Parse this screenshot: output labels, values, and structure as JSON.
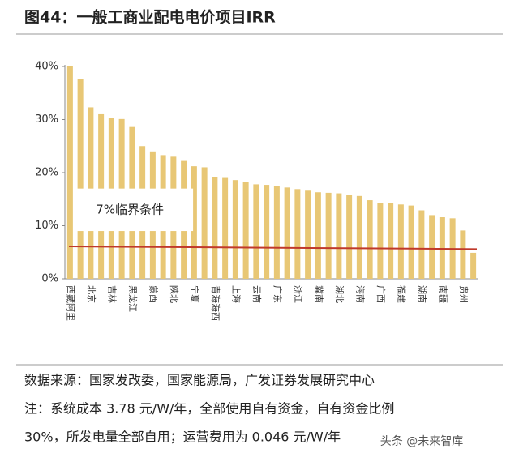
{
  "chart_data": {
    "type": "bar",
    "title": "图44：一般工商业配电电价项目IRR",
    "categories": [
      "西藏阿里",
      null,
      "北京",
      null,
      "吉林",
      null,
      "黑龙江",
      null,
      "蒙西",
      null,
      "陕北",
      null,
      "宁夏",
      null,
      "青海海西",
      null,
      "上海",
      null,
      "云南",
      null,
      "广东",
      null,
      "浙江",
      null,
      "冀南",
      null,
      "湖北",
      null,
      "海南",
      null,
      "广西",
      null,
      "福建",
      null,
      "湖南",
      null,
      "南疆",
      null,
      "贵州",
      null
    ],
    "values": [
      40,
      37.7,
      32.3,
      31,
      30.3,
      30.1,
      28.6,
      25,
      24,
      23.3,
      23,
      22.2,
      21.2,
      21,
      19.1,
      19,
      18.6,
      18.2,
      17.8,
      17.7,
      17.5,
      17.2,
      16.9,
      16.6,
      16.3,
      16.2,
      16.1,
      15.8,
      15.6,
      14.8,
      14.3,
      14.2,
      14,
      13.8,
      12.9,
      12,
      11.6,
      11.4,
      9.1,
      4.9
    ],
    "color": "#e8c775",
    "ylim": [
      0,
      40
    ],
    "yticks": [
      {
        "value": 0,
        "label": "0%"
      },
      {
        "value": 10,
        "label": "10%"
      },
      {
        "value": 20,
        "label": "20%"
      },
      {
        "value": 30,
        "label": "30%"
      },
      {
        "value": 40,
        "label": "40%"
      }
    ],
    "reference_line": {
      "label": "7%临界条件",
      "values": [
        6.1,
        5.6
      ],
      "color": "#c0392b"
    },
    "notes": [
      "数据来源：国家发改委，国家能源局，广发证券发展研究中心",
      "注：系统成本 3.78 元/W/年，全部使用自有资金，自有资金比例",
      "30%，所发电量全部自用；运营费用为 0.046 元/W/年"
    ],
    "watermark": "头条 @未来智库"
  }
}
